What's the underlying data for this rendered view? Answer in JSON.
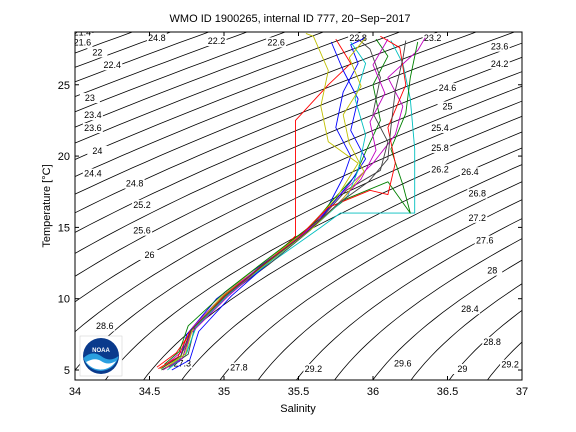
{
  "chart_data": {
    "type": "line",
    "title": "WMO ID 1900265, internal ID 777, 20−Sep−2017",
    "xlabel": "Salinity",
    "ylabel": "Temperature [°C]",
    "xlim": [
      34,
      37
    ],
    "ylim": [
      4.3,
      28.7
    ],
    "xticks": [
      34,
      34.5,
      35,
      35.5,
      36,
      36.5,
      37
    ],
    "xtick_labels": [
      "34",
      "34.5",
      "35",
      "35.5",
      "36",
      "36.5",
      "37"
    ],
    "yticks": [
      5,
      10,
      15,
      20,
      25
    ],
    "ytick_labels": [
      "5",
      "10",
      "15",
      "20",
      "25"
    ],
    "grid": false,
    "legend": "none",
    "logo_text": "NOAA",
    "density_contours": {
      "levels": [
        21.4,
        21.6,
        21.8,
        22,
        22.2,
        22.4,
        22.6,
        22.8,
        23,
        23.2,
        23.4,
        23.6,
        23.8,
        24,
        24.2,
        24.4,
        24.6,
        24.8,
        25,
        25.2,
        25.4,
        25.6,
        25.8,
        26,
        26.2,
        26.4,
        26.6,
        26.8,
        27,
        27.2,
        27.4,
        27.6,
        27.8,
        28,
        28.2,
        28.4,
        28.6,
        28.8,
        29,
        29.2
      ],
      "labels": [
        {
          "text": "21.4",
          "s": 34.05,
          "t": 28.6
        },
        {
          "text": "21.6",
          "s": 34.05,
          "t": 27.9
        },
        {
          "text": "22",
          "s": 34.15,
          "t": 27.2
        },
        {
          "text": "22.4",
          "s": 34.25,
          "t": 26.3
        },
        {
          "text": "22.2",
          "s": 34.95,
          "t": 28.0
        },
        {
          "text": "24.8",
          "s": 34.55,
          "t": 28.2
        },
        {
          "text": "22.6",
          "s": 35.35,
          "t": 27.9
        },
        {
          "text": "22.8",
          "s": 35.9,
          "t": 28.2
        },
        {
          "text": "23.2",
          "s": 36.4,
          "t": 28.2
        },
        {
          "text": "23.6",
          "s": 36.85,
          "t": 27.6
        },
        {
          "text": "24.2",
          "s": 36.85,
          "t": 26.4
        },
        {
          "text": "23",
          "s": 34.1,
          "t": 24.0
        },
        {
          "text": "23.4",
          "s": 34.12,
          "t": 22.8
        },
        {
          "text": "23.6",
          "s": 34.12,
          "t": 21.9
        },
        {
          "text": "24",
          "s": 34.15,
          "t": 20.3
        },
        {
          "text": "24.4",
          "s": 34.12,
          "t": 18.7
        },
        {
          "text": "24.8",
          "s": 34.4,
          "t": 18.0
        },
        {
          "text": "25.2",
          "s": 34.45,
          "t": 16.5
        },
        {
          "text": "25.6",
          "s": 34.45,
          "t": 14.7
        },
        {
          "text": "26",
          "s": 34.5,
          "t": 13.0
        },
        {
          "text": "24.6",
          "s": 36.5,
          "t": 24.7
        },
        {
          "text": "25",
          "s": 36.5,
          "t": 23.4
        },
        {
          "text": "25.4",
          "s": 36.45,
          "t": 21.9
        },
        {
          "text": "25.8",
          "s": 36.45,
          "t": 20.5
        },
        {
          "text": "26.2",
          "s": 36.45,
          "t": 19.0
        },
        {
          "text": "26.4",
          "s": 36.65,
          "t": 18.8
        },
        {
          "text": "26.8",
          "s": 36.7,
          "t": 17.3
        },
        {
          "text": "27.2",
          "s": 36.7,
          "t": 15.6
        },
        {
          "text": "27.6",
          "s": 36.75,
          "t": 14.0
        },
        {
          "text": "28",
          "s": 36.8,
          "t": 11.9
        },
        {
          "text": "28.4",
          "s": 36.65,
          "t": 9.2
        },
        {
          "text": "28.8",
          "s": 36.8,
          "t": 6.9
        },
        {
          "text": "29.6",
          "s": 36.2,
          "t": 5.4
        },
        {
          "text": "29",
          "s": 36.6,
          "t": 5.0
        },
        {
          "text": "29.2",
          "s": 36.92,
          "t": 5.3
        },
        {
          "text": "28.6",
          "s": 34.2,
          "t": 8.0
        },
        {
          "text": "27.8",
          "s": 35.1,
          "t": 5.1
        },
        {
          "text": "29.2",
          "s": 35.6,
          "t": 5.0
        },
        {
          "text": "27.3",
          "s": 34.72,
          "t": 5.4
        }
      ]
    },
    "series": [
      {
        "color": "#0000ff",
        "points": [
          [
            34.6,
            5.1
          ],
          [
            34.7,
            5.6
          ],
          [
            34.75,
            7.5
          ],
          [
            34.95,
            10
          ],
          [
            35.2,
            12
          ],
          [
            35.5,
            14.2
          ],
          [
            35.7,
            16.5
          ],
          [
            35.8,
            18.5
          ],
          [
            35.85,
            20
          ],
          [
            35.75,
            22
          ],
          [
            35.8,
            24.5
          ],
          [
            35.9,
            26.5
          ],
          [
            35.85,
            27.8
          ],
          [
            35.95,
            28.3
          ]
        ]
      },
      {
        "color": "#008000",
        "points": [
          [
            34.58,
            5.0
          ],
          [
            34.72,
            5.8
          ],
          [
            34.78,
            7.8
          ],
          [
            35.0,
            10.2
          ],
          [
            35.25,
            12.3
          ],
          [
            35.55,
            14.6
          ],
          [
            35.72,
            16.8
          ],
          [
            35.88,
            18.6
          ],
          [
            35.95,
            20.3
          ],
          [
            36.05,
            22.5
          ],
          [
            36.0,
            25
          ],
          [
            36.1,
            27
          ],
          [
            36.02,
            28.2
          ]
        ]
      },
      {
        "color": "#ff0000",
        "points": [
          [
            34.55,
            5.2
          ],
          [
            34.68,
            6.2
          ],
          [
            34.8,
            8.0
          ],
          [
            35.02,
            10.4
          ],
          [
            35.3,
            12.6
          ],
          [
            35.48,
            14.4
          ],
          [
            35.48,
            22.5
          ],
          [
            35.7,
            25
          ],
          [
            35.85,
            26.5
          ],
          [
            35.75,
            28.2
          ]
        ]
      },
      {
        "color": "#00bfbf",
        "points": [
          [
            34.62,
            5.0
          ],
          [
            34.74,
            6.0
          ],
          [
            34.82,
            8.2
          ],
          [
            35.05,
            10.5
          ],
          [
            35.35,
            12.8
          ],
          [
            35.65,
            15.0
          ],
          [
            35.78,
            16.0
          ],
          [
            36.28,
            16.0
          ],
          [
            36.28,
            20.5
          ],
          [
            36.25,
            24
          ],
          [
            36.2,
            26.5
          ],
          [
            36.12,
            28.1
          ]
        ]
      },
      {
        "color": "#bf00bf",
        "points": [
          [
            34.6,
            5.3
          ],
          [
            34.73,
            6.4
          ],
          [
            34.79,
            8.0
          ],
          [
            35.0,
            10.3
          ],
          [
            35.28,
            12.5
          ],
          [
            35.6,
            15.2
          ],
          [
            35.8,
            17.5
          ],
          [
            36.0,
            19.5
          ],
          [
            36.15,
            21.5
          ],
          [
            36.2,
            23.5
          ],
          [
            36.1,
            25.5
          ],
          [
            36.3,
            27.4
          ],
          [
            36.35,
            28.3
          ]
        ]
      },
      {
        "color": "#bfbf00",
        "points": [
          [
            34.57,
            5.1
          ],
          [
            34.71,
            5.9
          ],
          [
            34.77,
            7.6
          ],
          [
            34.98,
            10.1
          ],
          [
            35.22,
            12.2
          ],
          [
            35.52,
            14.5
          ],
          [
            35.75,
            17.0
          ],
          [
            35.9,
            19.5
          ],
          [
            35.7,
            21
          ],
          [
            35.65,
            23.5
          ],
          [
            35.7,
            26
          ],
          [
            35.6,
            28.4
          ],
          [
            35.55,
            28.6
          ]
        ]
      },
      {
        "color": "#404040",
        "points": [
          [
            34.63,
            5.2
          ],
          [
            34.76,
            6.1
          ],
          [
            34.8,
            7.9
          ],
          [
            35.03,
            10.3
          ],
          [
            35.3,
            12.4
          ],
          [
            35.58,
            14.8
          ],
          [
            35.82,
            17.6
          ],
          [
            36.05,
            19.0
          ],
          [
            36.1,
            21.0
          ],
          [
            36.0,
            23.0
          ],
          [
            36.05,
            25.5
          ],
          [
            35.98,
            27.5
          ],
          [
            35.9,
            28.2
          ]
        ]
      },
      {
        "color": "#0000ff",
        "points": [
          [
            34.65,
            5.0
          ],
          [
            34.77,
            5.7
          ],
          [
            34.83,
            7.7
          ],
          [
            35.05,
            10.2
          ],
          [
            35.32,
            12.7
          ],
          [
            35.62,
            15.3
          ],
          [
            35.85,
            18.2
          ],
          [
            35.95,
            19.8
          ],
          [
            35.85,
            21.8
          ],
          [
            35.9,
            24
          ],
          [
            35.8,
            26
          ],
          [
            35.72,
            28.0
          ]
        ]
      },
      {
        "color": "#008000",
        "points": [
          [
            34.6,
            5.4
          ],
          [
            34.7,
            6.3
          ],
          [
            34.76,
            8.1
          ],
          [
            35.01,
            10.5
          ],
          [
            35.27,
            12.6
          ],
          [
            35.57,
            15.0
          ],
          [
            35.82,
            17.0
          ],
          [
            36.1,
            18.2
          ],
          [
            36.25,
            16.0
          ],
          [
            36.2,
            18
          ],
          [
            36.12,
            20.5
          ],
          [
            36.22,
            23.0
          ],
          [
            36.25,
            25.5
          ],
          [
            36.3,
            28.0
          ]
        ]
      },
      {
        "color": "#ff0000",
        "points": [
          [
            34.56,
            5.1
          ],
          [
            34.69,
            5.9
          ],
          [
            34.77,
            7.7
          ],
          [
            35.0,
            10.0
          ],
          [
            35.24,
            12.2
          ],
          [
            35.5,
            14.3
          ],
          [
            35.7,
            16.4
          ],
          [
            35.98,
            17.6
          ],
          [
            36.1,
            17.3
          ],
          [
            36.15,
            19.5
          ],
          [
            36.1,
            22
          ],
          [
            36.22,
            25
          ],
          [
            36.18,
            27.6
          ],
          [
            36.05,
            28.4
          ]
        ]
      },
      {
        "color": "#00bfbf",
        "points": [
          [
            34.64,
            5.3
          ],
          [
            34.75,
            6.2
          ],
          [
            34.81,
            8.0
          ],
          [
            35.04,
            10.4
          ],
          [
            35.31,
            12.6
          ],
          [
            35.61,
            15.1
          ],
          [
            35.83,
            17.2
          ],
          [
            35.9,
            19.0
          ],
          [
            35.95,
            21.5
          ],
          [
            35.88,
            24.0
          ],
          [
            35.95,
            26.5
          ],
          [
            35.85,
            28.0
          ]
        ]
      },
      {
        "color": "#bf00bf",
        "points": [
          [
            34.59,
            5.0
          ],
          [
            34.72,
            5.8
          ],
          [
            34.78,
            7.6
          ],
          [
            35.02,
            10.1
          ],
          [
            35.26,
            12.3
          ],
          [
            35.54,
            14.6
          ],
          [
            35.76,
            16.6
          ],
          [
            35.92,
            18.4
          ],
          [
            36.02,
            20.4
          ],
          [
            35.98,
            22.4
          ],
          [
            36.08,
            24.4
          ],
          [
            36.0,
            26.4
          ],
          [
            36.1,
            28.2
          ]
        ]
      },
      {
        "color": "#bfbf00",
        "points": [
          [
            34.61,
            5.2
          ],
          [
            34.74,
            6.1
          ],
          [
            34.79,
            7.9
          ],
          [
            35.02,
            10.3
          ],
          [
            35.29,
            12.5
          ],
          [
            35.59,
            14.9
          ],
          [
            35.79,
            16.9
          ],
          [
            35.94,
            18.9
          ],
          [
            35.84,
            20.9
          ],
          [
            35.8,
            22.9
          ],
          [
            35.92,
            24.9
          ],
          [
            35.84,
            26.9
          ],
          [
            35.95,
            28.3
          ]
        ]
      },
      {
        "color": "#404040",
        "points": [
          [
            34.58,
            5.1
          ],
          [
            34.71,
            6.0
          ],
          [
            34.78,
            7.8
          ],
          [
            35.01,
            10.2
          ],
          [
            35.27,
            12.4
          ],
          [
            35.56,
            14.7
          ],
          [
            35.77,
            16.7
          ],
          [
            35.97,
            18.2
          ],
          [
            36.1,
            19.8
          ],
          [
            36.12,
            22.0
          ],
          [
            36.15,
            24.6
          ],
          [
            36.2,
            26.8
          ],
          [
            36.22,
            28.1
          ]
        ]
      }
    ]
  }
}
